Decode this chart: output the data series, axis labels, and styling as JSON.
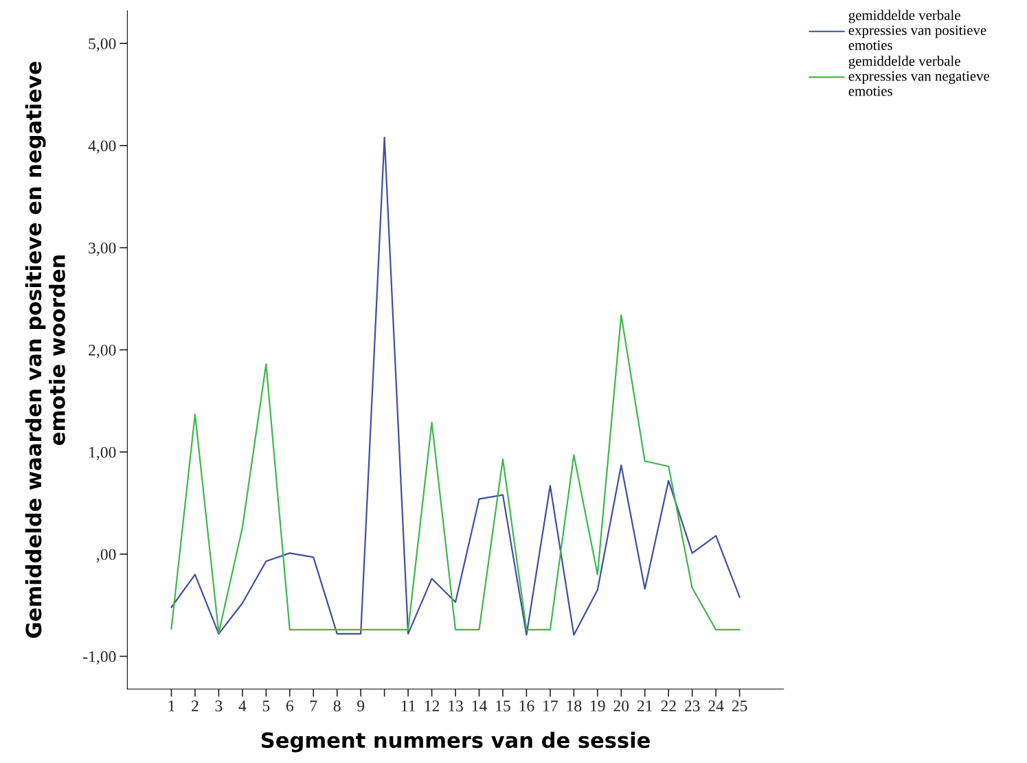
{
  "chart_data": {
    "type": "line",
    "xlabel": "Segment nummers van de sessie",
    "ylabel": "Gemiddelde waarden van positieve en negatieve\nemotie woorden",
    "categories": [
      "1",
      "2",
      "3",
      "4",
      "5",
      "6",
      "7",
      "8",
      "9",
      null,
      "11",
      "12",
      "13",
      "14",
      "15",
      "16",
      "17",
      "18",
      "19",
      "20",
      "21",
      "22",
      "23",
      "24",
      "25"
    ],
    "series": [
      {
        "name": "gemiddelde verbale\nexpressies van positieve\nemoties",
        "color": "#3f4fa0",
        "values": [
          -0.52,
          -0.2,
          -0.78,
          -0.48,
          -0.07,
          0.01,
          -0.03,
          -0.78,
          -0.78,
          4.08,
          -0.78,
          -0.24,
          -0.47,
          0.54,
          0.58,
          -0.79,
          0.67,
          -0.79,
          -0.35,
          0.87,
          -0.34,
          0.72,
          0.01,
          0.18,
          -0.42
        ]
      },
      {
        "name": "gemiddelde verbale\nexpressies van negatieve\nemoties",
        "color": "#3cb84a",
        "values": [
          -0.73,
          1.37,
          -0.77,
          0.26,
          1.86,
          -0.74,
          -0.74,
          -0.74,
          -0.74,
          -0.74,
          -0.74,
          1.29,
          -0.74,
          -0.74,
          0.93,
          -0.74,
          -0.74,
          0.97,
          -0.2,
          2.34,
          0.91,
          0.86,
          -0.33,
          -0.74,
          -0.74
        ]
      }
    ],
    "ylim": [
      -1.32,
      5.32
    ],
    "yticks": [
      {
        "value": -1,
        "label": "-1,00"
      },
      {
        "value": 0,
        "label": ",00"
      },
      {
        "value": 1,
        "label": "1,00"
      },
      {
        "value": 2,
        "label": "2,00"
      },
      {
        "value": 3,
        "label": "3,00"
      },
      {
        "value": 4,
        "label": "4,00"
      },
      {
        "value": 5,
        "label": "5,00"
      }
    ],
    "grid": false,
    "legend": "top right",
    "marker": "none",
    "line_style": "solid"
  }
}
